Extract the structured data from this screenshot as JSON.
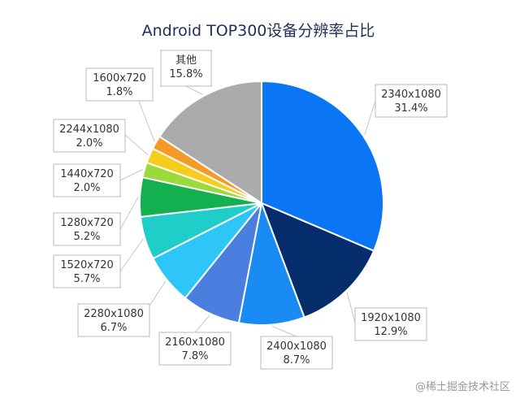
{
  "chart_data": {
    "type": "pie",
    "title": "Android TOP300设备分辨率占比",
    "slices": [
      {
        "label": "2340x1080",
        "value": 31.4,
        "pct": "31.4%",
        "color": "#0a75f5"
      },
      {
        "label": "1920x1080",
        "value": 12.9,
        "pct": "12.9%",
        "color": "#062d6b"
      },
      {
        "label": "2400x1080",
        "value": 8.7,
        "pct": "8.7%",
        "color": "#1a8af5"
      },
      {
        "label": "2160x1080",
        "value": 7.8,
        "pct": "7.8%",
        "color": "#4a7fe0"
      },
      {
        "label": "2280x1080",
        "value": 6.7,
        "pct": "6.7%",
        "color": "#2ec6f7"
      },
      {
        "label": "1520x720",
        "value": 5.7,
        "pct": "5.7%",
        "color": "#1fcec8"
      },
      {
        "label": "1280x720",
        "value": 5.2,
        "pct": "5.2%",
        "color": "#14b050"
      },
      {
        "label": "1440x720",
        "value": 2.0,
        "pct": "2.0%",
        "color": "#9ada3c"
      },
      {
        "label": "2244x1080",
        "value": 2.0,
        "pct": "2.0%",
        "color": "#f7cd1c"
      },
      {
        "label": "1600x720",
        "value": 1.8,
        "pct": "1.8%",
        "color": "#f59a28"
      },
      {
        "label": "其他",
        "value": 15.8,
        "pct": "15.8%",
        "color": "#ababab"
      }
    ]
  },
  "watermark": "@稀土掘金技术社区"
}
